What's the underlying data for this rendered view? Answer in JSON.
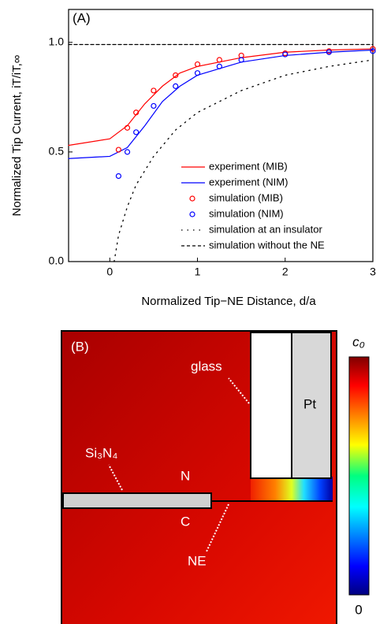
{
  "chart_data": {
    "type": "line",
    "panel_label": "(A)",
    "xlabel": "Normalized Tip−NE Distance, d/a",
    "ylabel": "Normalized Tip Current, iT/iT,∞",
    "xlim": [
      -0.47,
      3.0
    ],
    "ylim": [
      0,
      1.15
    ],
    "xticks": [
      0,
      1,
      2,
      3
    ],
    "yticks": [
      {
        "value": 0,
        "label": "0.0"
      },
      {
        "value": 0.5,
        "label": "0.5"
      },
      {
        "value": 1,
        "label": "1.0"
      }
    ],
    "legend": "lower right",
    "series": [
      {
        "name": "experiment (MIB)",
        "color": "#ff0000",
        "style": "solid",
        "x": [
          -0.47,
          0,
          0.2,
          0.4,
          0.6,
          0.8,
          1.0,
          1.5,
          2.0,
          2.5,
          3.0
        ],
        "values": [
          0.53,
          0.56,
          0.62,
          0.72,
          0.8,
          0.86,
          0.89,
          0.93,
          0.955,
          0.965,
          0.97
        ]
      },
      {
        "name": "experiment (NIM)",
        "color": "#0000ff",
        "style": "solid",
        "x": [
          -0.47,
          0,
          0.2,
          0.4,
          0.6,
          0.8,
          1.0,
          1.5,
          2.0,
          2.5,
          3.0
        ],
        "values": [
          0.47,
          0.48,
          0.52,
          0.62,
          0.73,
          0.8,
          0.85,
          0.91,
          0.94,
          0.955,
          0.965
        ]
      },
      {
        "name": "simulation (MIB)",
        "color": "#ff0000",
        "style": "circle",
        "x": [
          0.1,
          0.2,
          0.3,
          0.5,
          0.75,
          1.0,
          1.25,
          1.5,
          2.0,
          2.5,
          3.0
        ],
        "values": [
          0.51,
          0.61,
          0.68,
          0.78,
          0.85,
          0.9,
          0.92,
          0.94,
          0.95,
          0.96,
          0.97
        ]
      },
      {
        "name": "simulation (NIM)",
        "color": "#0000ff",
        "style": "circle",
        "x": [
          0.1,
          0.2,
          0.3,
          0.5,
          0.75,
          1.0,
          1.25,
          1.5,
          2.0,
          2.5,
          3.0
        ],
        "values": [
          0.39,
          0.5,
          0.59,
          0.71,
          0.8,
          0.86,
          0.89,
          0.92,
          0.945,
          0.955,
          0.96
        ]
      },
      {
        "name": "simulation at an insulator",
        "color": "#000000",
        "style": "dotted",
        "x": [
          0.05,
          0.1,
          0.2,
          0.3,
          0.5,
          0.75,
          1.0,
          1.5,
          2.0,
          2.5,
          3.0
        ],
        "values": [
          0.0,
          0.12,
          0.25,
          0.35,
          0.48,
          0.6,
          0.68,
          0.78,
          0.85,
          0.89,
          0.92
        ]
      },
      {
        "name": "simulation without the NE",
        "color": "#000000",
        "style": "dashed",
        "x": [
          -0.47,
          3.0
        ],
        "values": [
          0.99,
          0.99
        ]
      }
    ]
  },
  "panel_b": {
    "label": "(B)",
    "glass": "glass",
    "pt": "Pt",
    "si3n4": "Si₃N₄",
    "n": "N",
    "c": "C",
    "ne": "NE",
    "colorbar_top": "c₀",
    "colorbar_bottom": "0"
  }
}
